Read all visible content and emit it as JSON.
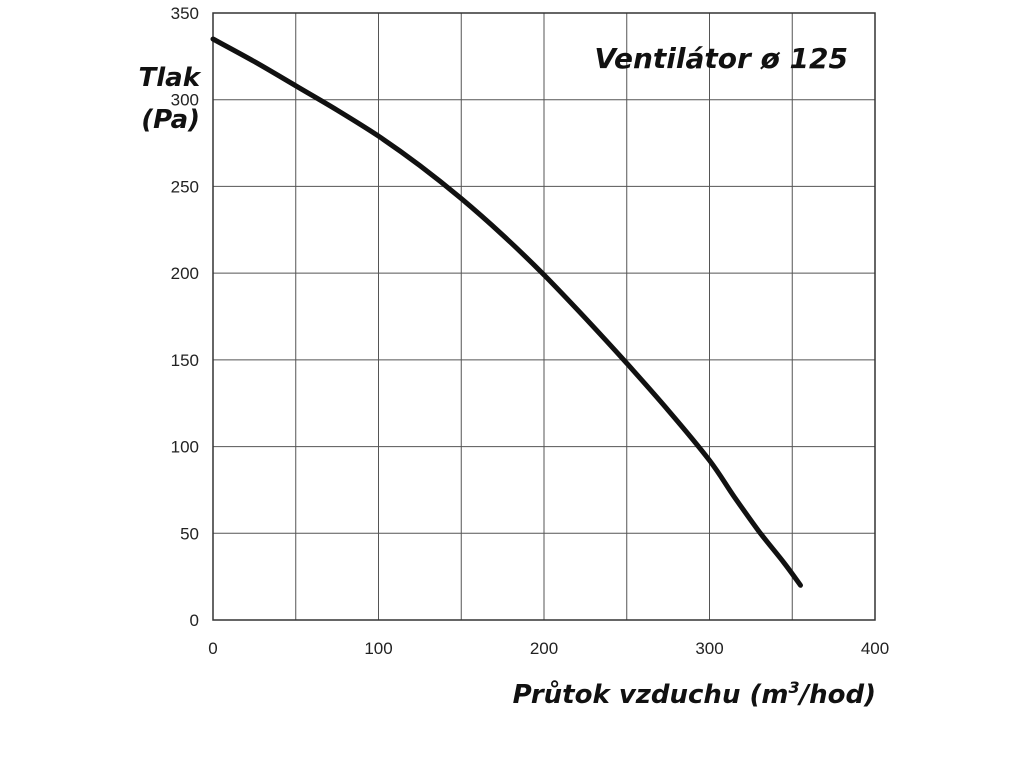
{
  "chart_data": {
    "type": "line",
    "title": "Ventilátor ø 125",
    "ylabel_line1": "Tlak",
    "ylabel_line2": "(Pa)",
    "xlabel_prefix": "Průtok vzduchu (m",
    "xlabel_sup": "3",
    "xlabel_suffix": "/hod)",
    "xlim": [
      0,
      400
    ],
    "ylim": [
      0,
      350
    ],
    "xticks": [
      0,
      100,
      200,
      300,
      400
    ],
    "yticks": [
      0,
      50,
      100,
      150,
      200,
      250,
      300,
      350
    ],
    "x_gridlines": [
      0,
      50,
      100,
      150,
      200,
      250,
      300,
      350,
      400
    ],
    "y_gridlines": [
      0,
      50,
      100,
      150,
      200,
      250,
      300,
      350
    ],
    "grid": true,
    "series": [
      {
        "x": [
          0,
          25,
          50,
          75,
          100,
          125,
          150,
          175,
          200,
          225,
          250,
          275,
          300,
          315,
          330,
          345,
          355
        ],
        "y": [
          335,
          322,
          308,
          294,
          279,
          262,
          243,
          222,
          199,
          174,
          148,
          121,
          92,
          71,
          51,
          33,
          20
        ]
      }
    ]
  }
}
